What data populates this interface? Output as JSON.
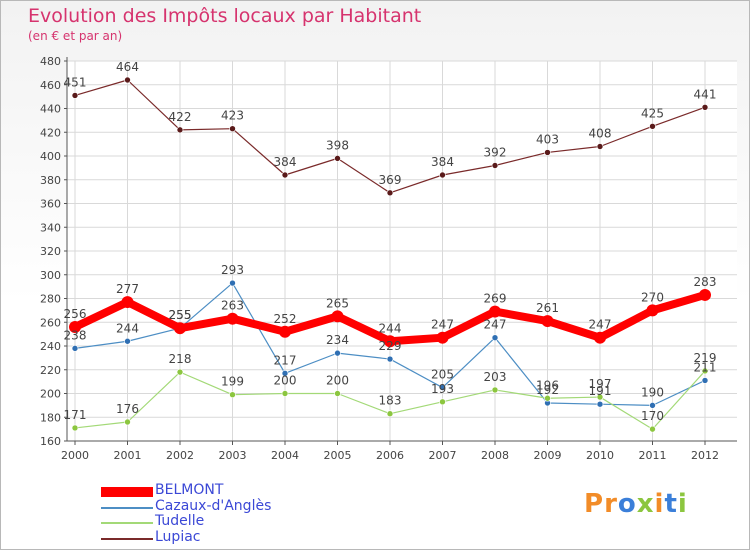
{
  "chart_data": {
    "type": "line",
    "title": "Evolution des Impôts locaux par Habitant",
    "subtitle": "(en € et par an)",
    "x": [
      "2000",
      "2001",
      "2002",
      "2003",
      "2004",
      "2005",
      "2006",
      "2007",
      "2008",
      "2009",
      "2010",
      "2011",
      "2012"
    ],
    "ylim": [
      160,
      480
    ],
    "yticks": [
      160,
      180,
      200,
      220,
      240,
      260,
      280,
      300,
      320,
      340,
      360,
      380,
      400,
      420,
      440,
      460,
      480
    ],
    "grid": true,
    "legend_position": "bottom-left",
    "series": [
      {
        "name": "BELMONT",
        "color": "#ff0000",
        "values": [
          256,
          277,
          255,
          263,
          252,
          265,
          244,
          247,
          269,
          261,
          247,
          270,
          283
        ]
      },
      {
        "name": "Cazaux-d'Anglès",
        "color": "#4d8ec4",
        "values": [
          238,
          244,
          255,
          293,
          217,
          234,
          229,
          205,
          247,
          192,
          191,
          190,
          211
        ]
      },
      {
        "name": "Tudelle",
        "color": "#a3d977",
        "values": [
          171,
          176,
          218,
          199,
          200,
          200,
          183,
          193,
          203,
          196,
          197,
          170,
          219
        ]
      },
      {
        "name": "Lupiac",
        "color": "#7a2a2a",
        "values": [
          451,
          464,
          422,
          423,
          384,
          398,
          369,
          384,
          392,
          403,
          408,
          425,
          441
        ]
      }
    ]
  },
  "logo": {
    "text": "Proxiti",
    "letter_colors": [
      "#f28c28",
      "#f28c28",
      "#3b7fd9",
      "#8cc63f",
      "#f28c28",
      "#3b7fd9",
      "#8cc63f"
    ]
  }
}
